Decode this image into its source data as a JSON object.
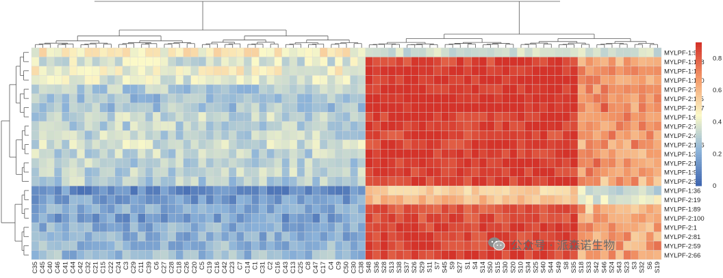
{
  "chart_data": {
    "type": "heatmap",
    "title": "",
    "columns": [
      "C35",
      "C45",
      "C40",
      "C46",
      "C41",
      "C44",
      "C42",
      "C32",
      "C21",
      "C15",
      "C22",
      "C24",
      "C3",
      "C29",
      "C11",
      "C39",
      "C6",
      "C27",
      "C28",
      "C18",
      "C26",
      "C20",
      "C5",
      "C19",
      "C16",
      "C42",
      "C23",
      "C7",
      "C14",
      "C1",
      "C31",
      "C2",
      "C16",
      "C43",
      "C13",
      "C25",
      "C8",
      "C47",
      "C17",
      "C4",
      "C9",
      "C50",
      "C30",
      "C38",
      "S48",
      "S36",
      "S28",
      "S13",
      "S38",
      "S37",
      "S26",
      "S29",
      "S11",
      "S7",
      "S45",
      "S9",
      "S27",
      "S1",
      "S4",
      "S14",
      "S50",
      "S15",
      "S30",
      "S20",
      "S10",
      "S34",
      "S25",
      "S40",
      "S44",
      "S49",
      "S8",
      "S35",
      "S18",
      "S33",
      "S42",
      "S46",
      "S24",
      "S43",
      "S23",
      "S3",
      "S32",
      "S6",
      "S19"
    ],
    "rows": [
      "MYLPF-1:9",
      "MYLPF-1:108",
      "MYLPF-1:16",
      "MYLPF-1:130",
      "MYLPF-2:71",
      "MYLPF-2:115",
      "MYLPF-2:127",
      "MYLPF-1:61",
      "MYLPF-2:73",
      "MYLPF-2:49",
      "MYLPF-2:106",
      "MYLPF-1:31",
      "MYLPF-2:16",
      "MYLPF-1:96",
      "MYLPF-2:31",
      "MYLPF-1:36",
      "MYLPF-2:19",
      "MYLPF-1:89",
      "MYLPF-2:100",
      "MYLPF-2:1",
      "MYLPF-2:81",
      "MYLPF-2:59",
      "MYLPF-2:66"
    ],
    "row_values_control": [
      0.47,
      0.38,
      0.44,
      0.38,
      0.3,
      0.27,
      0.28,
      0.33,
      0.33,
      0.34,
      0.36,
      0.33,
      0.32,
      0.33,
      0.31,
      0.13,
      0.17,
      0.2,
      0.17,
      0.22,
      0.22,
      0.24,
      0.25
    ],
    "row_values_sample": [
      0.36,
      0.86,
      0.9,
      0.9,
      0.9,
      0.92,
      0.92,
      0.88,
      0.88,
      0.86,
      0.86,
      0.88,
      0.88,
      0.86,
      0.86,
      0.55,
      0.6,
      0.82,
      0.84,
      0.86,
      0.86,
      0.86,
      0.86
    ],
    "colorbar": {
      "ticks": [
        "0",
        "0.2",
        "0.4",
        "0.6",
        "0.8"
      ],
      "min": 0,
      "max": 0.9
    },
    "colors": {
      "low": "#3b62ad",
      "mid": "#fbf9c8",
      "high": "#d4332a"
    },
    "dendrograms": {
      "rows": true,
      "columns": true
    },
    "legend": "right"
  },
  "watermark": {
    "text": "公众号 · 派森诺生物",
    "icon": "wechat-icon"
  }
}
